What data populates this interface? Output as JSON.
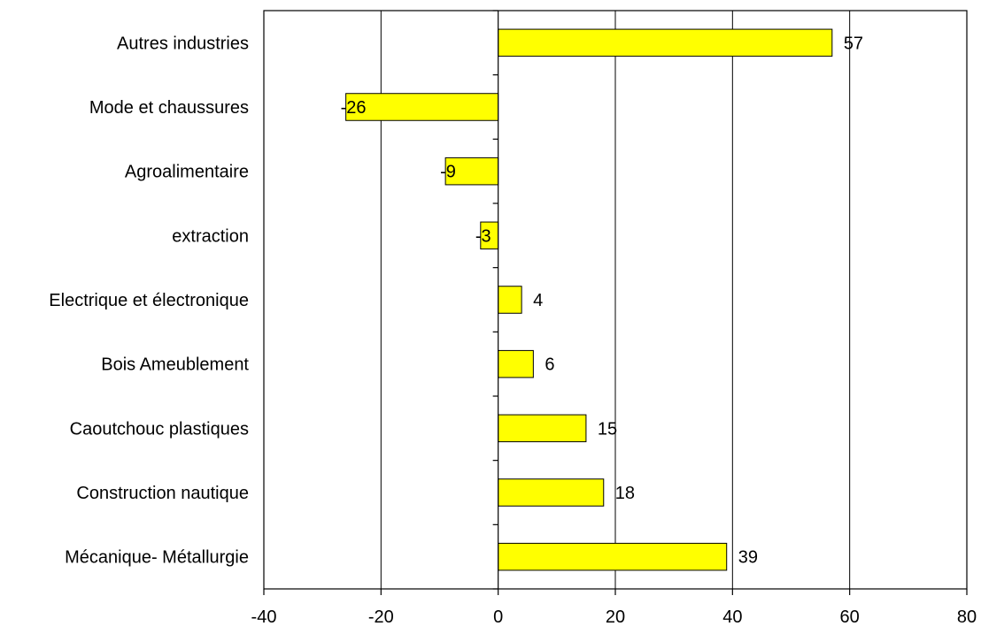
{
  "chart_data": {
    "type": "bar",
    "orientation": "horizontal",
    "categories": [
      "Autres industries",
      "Mode et chaussures",
      "Agroalimentaire",
      "extraction",
      "Electrique et électronique",
      "Bois Ameublement",
      "Caoutchouc plastiques",
      "Construction nautique",
      "Mécanique- Métallurgie"
    ],
    "values": [
      57,
      -26,
      -9,
      -3,
      4,
      6,
      15,
      18,
      39
    ],
    "data_labels": [
      "57",
      "-26",
      "-9",
      "-3",
      "4",
      "6",
      "15",
      "18",
      "39"
    ],
    "title": "",
    "xlabel": "",
    "ylabel": "",
    "xlim": [
      -40,
      80
    ],
    "x_ticks": [
      -40,
      -20,
      0,
      20,
      40,
      60,
      80
    ],
    "x_tick_labels": [
      "-40",
      "-20",
      "0",
      "20",
      "40",
      "60",
      "80"
    ],
    "grid": true,
    "legend": "none",
    "colors": {
      "bar_fill": "#ffff00",
      "bar_stroke": "#000000",
      "grid": "#000000",
      "background": "#ffffff"
    }
  }
}
